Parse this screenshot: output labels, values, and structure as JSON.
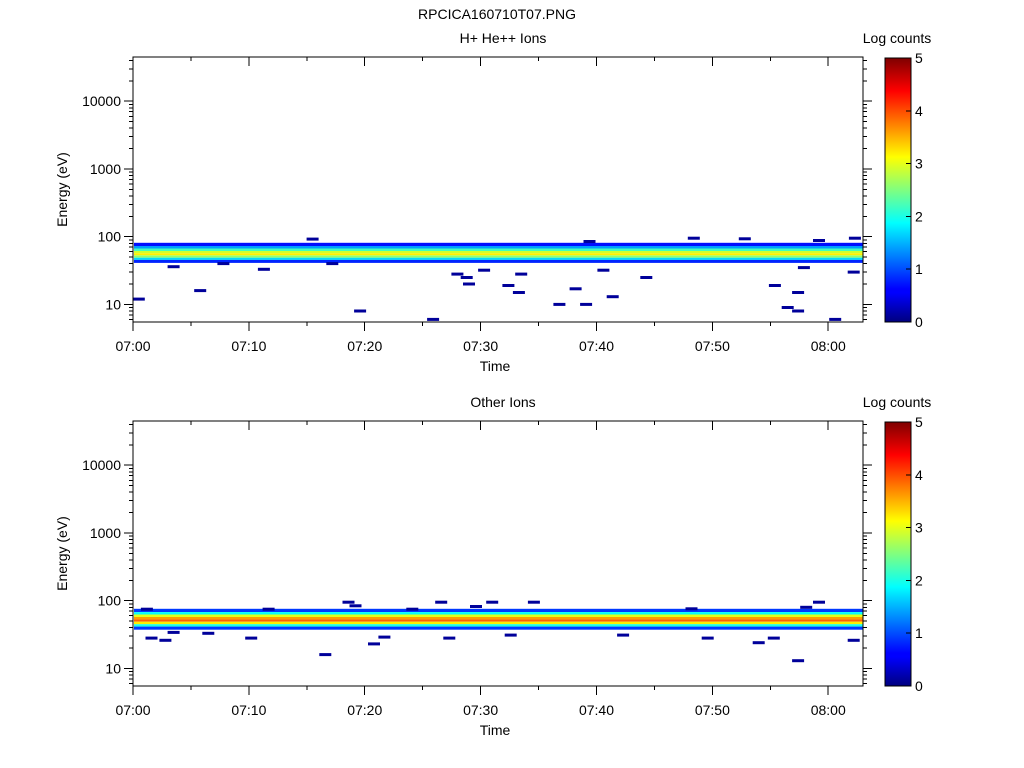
{
  "figure_title": "RPCICA160710T07.PNG",
  "chart_data": [
    {
      "type": "heatmap",
      "title": "H+ He++ Ions",
      "xlabel": "Time",
      "ylabel": "Energy (eV)",
      "y_scale": "log",
      "ylim": [
        5.5,
        45000
      ],
      "xlim": [
        "07:00",
        "08:03"
      ],
      "x_ticks": [
        "07:00",
        "07:10",
        "07:20",
        "07:30",
        "07:40",
        "07:50",
        "08:00"
      ],
      "y_ticks": [
        "10",
        "100",
        "1000",
        "10000"
      ],
      "colorbar": {
        "label": "Log counts",
        "range": [
          0,
          5
        ],
        "ticks": [
          "0",
          "1",
          "2",
          "3",
          "4",
          "5"
        ],
        "colormap": "jet"
      },
      "band": [
        {
          "energy_eV": 76,
          "log_counts": 0.7
        },
        {
          "energy_eV": 70,
          "log_counts": 1.4
        },
        {
          "energy_eV": 64,
          "log_counts": 2.2
        },
        {
          "energy_eV": 59,
          "log_counts": 2.9
        },
        {
          "energy_eV": 55,
          "log_counts": 3.2
        },
        {
          "energy_eV": 51,
          "log_counts": 2.6
        },
        {
          "energy_eV": 47,
          "log_counts": 1.7
        },
        {
          "energy_eV": 44,
          "log_counts": 0.8
        }
      ],
      "sparse_events": [
        {
          "time_min": 0.5,
          "energy_eV": 12
        },
        {
          "time_min": 3.5,
          "energy_eV": 36
        },
        {
          "time_min": 5.8,
          "energy_eV": 16
        },
        {
          "time_min": 7.8,
          "energy_eV": 40
        },
        {
          "time_min": 11.3,
          "energy_eV": 33
        },
        {
          "time_min": 15.5,
          "energy_eV": 92
        },
        {
          "time_min": 17.2,
          "energy_eV": 40
        },
        {
          "time_min": 19.6,
          "energy_eV": 8
        },
        {
          "time_min": 25.9,
          "energy_eV": 6
        },
        {
          "time_min": 28.0,
          "energy_eV": 28
        },
        {
          "time_min": 28.8,
          "energy_eV": 25
        },
        {
          "time_min": 29.0,
          "energy_eV": 20
        },
        {
          "time_min": 30.3,
          "energy_eV": 32
        },
        {
          "time_min": 32.4,
          "energy_eV": 19
        },
        {
          "time_min": 33.3,
          "energy_eV": 15
        },
        {
          "time_min": 33.5,
          "energy_eV": 28
        },
        {
          "time_min": 36.8,
          "energy_eV": 10
        },
        {
          "time_min": 38.2,
          "energy_eV": 17
        },
        {
          "time_min": 39.1,
          "energy_eV": 10
        },
        {
          "time_min": 39.4,
          "energy_eV": 85
        },
        {
          "time_min": 40.6,
          "energy_eV": 32
        },
        {
          "time_min": 41.4,
          "energy_eV": 13
        },
        {
          "time_min": 44.3,
          "energy_eV": 25
        },
        {
          "time_min": 48.4,
          "energy_eV": 95
        },
        {
          "time_min": 52.8,
          "energy_eV": 93
        },
        {
          "time_min": 55.4,
          "energy_eV": 19
        },
        {
          "time_min": 56.5,
          "energy_eV": 9
        },
        {
          "time_min": 57.4,
          "energy_eV": 15
        },
        {
          "time_min": 57.4,
          "energy_eV": 8
        },
        {
          "time_min": 57.9,
          "energy_eV": 35
        },
        {
          "time_min": 59.2,
          "energy_eV": 88
        },
        {
          "time_min": 60.6,
          "energy_eV": 6
        },
        {
          "time_min": 62.2,
          "energy_eV": 30
        },
        {
          "time_min": 62.3,
          "energy_eV": 95
        }
      ]
    },
    {
      "type": "heatmap",
      "title": "Other Ions",
      "xlabel": "Time",
      "ylabel": "Energy (eV)",
      "y_scale": "log",
      "ylim": [
        5.5,
        45000
      ],
      "xlim": [
        "07:00",
        "08:03"
      ],
      "x_ticks": [
        "07:00",
        "07:10",
        "07:20",
        "07:30",
        "07:40",
        "07:50",
        "08:00"
      ],
      "y_ticks": [
        "10",
        "100",
        "1000",
        "10000"
      ],
      "colorbar": {
        "label": "Log counts",
        "range": [
          0,
          5
        ],
        "ticks": [
          "0",
          "1",
          "2",
          "3",
          "4",
          "5"
        ],
        "colormap": "jet"
      },
      "band": [
        {
          "energy_eV": 71,
          "log_counts": 0.9
        },
        {
          "energy_eV": 65,
          "log_counts": 1.9
        },
        {
          "energy_eV": 60,
          "log_counts": 3.0
        },
        {
          "energy_eV": 55,
          "log_counts": 3.6
        },
        {
          "energy_eV": 51,
          "log_counts": 3.9
        },
        {
          "energy_eV": 47,
          "log_counts": 3.2
        },
        {
          "energy_eV": 43,
          "log_counts": 2.0
        },
        {
          "energy_eV": 40,
          "log_counts": 0.9
        }
      ],
      "sparse_events": [
        {
          "time_min": 1.2,
          "energy_eV": 75
        },
        {
          "time_min": 1.6,
          "energy_eV": 28
        },
        {
          "time_min": 2.8,
          "energy_eV": 26
        },
        {
          "time_min": 3.5,
          "energy_eV": 34
        },
        {
          "time_min": 6.5,
          "energy_eV": 33
        },
        {
          "time_min": 10.2,
          "energy_eV": 28
        },
        {
          "time_min": 11.7,
          "energy_eV": 75
        },
        {
          "time_min": 16.6,
          "energy_eV": 16
        },
        {
          "time_min": 18.6,
          "energy_eV": 95
        },
        {
          "time_min": 19.2,
          "energy_eV": 84
        },
        {
          "time_min": 20.8,
          "energy_eV": 23
        },
        {
          "time_min": 21.7,
          "energy_eV": 29
        },
        {
          "time_min": 24.1,
          "energy_eV": 75
        },
        {
          "time_min": 26.6,
          "energy_eV": 95
        },
        {
          "time_min": 27.3,
          "energy_eV": 28
        },
        {
          "time_min": 29.6,
          "energy_eV": 82
        },
        {
          "time_min": 31.0,
          "energy_eV": 95
        },
        {
          "time_min": 32.6,
          "energy_eV": 31
        },
        {
          "time_min": 34.6,
          "energy_eV": 95
        },
        {
          "time_min": 42.3,
          "energy_eV": 31
        },
        {
          "time_min": 48.2,
          "energy_eV": 76
        },
        {
          "time_min": 49.6,
          "energy_eV": 28
        },
        {
          "time_min": 54.0,
          "energy_eV": 24
        },
        {
          "time_min": 55.3,
          "energy_eV": 28
        },
        {
          "time_min": 57.4,
          "energy_eV": 13
        },
        {
          "time_min": 58.1,
          "energy_eV": 80
        },
        {
          "time_min": 59.2,
          "energy_eV": 95
        },
        {
          "time_min": 62.2,
          "energy_eV": 26
        }
      ]
    }
  ]
}
